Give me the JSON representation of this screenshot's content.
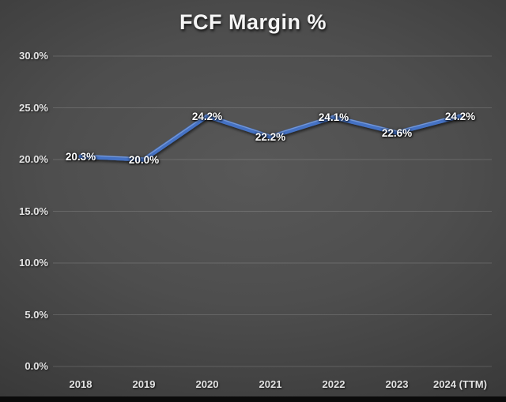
{
  "title": "FCF Margin %",
  "chart_data": {
    "type": "line",
    "title": "FCF Margin %",
    "categories": [
      "2018",
      "2019",
      "2020",
      "2021",
      "2022",
      "2023",
      "2024 (TTM)"
    ],
    "values": [
      20.3,
      20.0,
      24.2,
      22.2,
      24.1,
      22.6,
      24.2
    ],
    "point_labels": [
      "20.3%",
      "20.0%",
      "24.2%",
      "22.2%",
      "24.1%",
      "22.6%",
      "24.2%"
    ],
    "y_ticks": [
      {
        "value": 0,
        "label": "0.0%"
      },
      {
        "value": 5,
        "label": "5.0%"
      },
      {
        "value": 10,
        "label": "10.0%"
      },
      {
        "value": 15,
        "label": "15.0%"
      },
      {
        "value": 20,
        "label": "20.0%"
      },
      {
        "value": 25,
        "label": "25.0%"
      },
      {
        "value": 30,
        "label": "30.0%"
      }
    ],
    "ylim": [
      0,
      30
    ],
    "xlabel": "",
    "ylabel": "",
    "grid": true,
    "legend_position": "none",
    "series_name": "FCF Margin %"
  },
  "colors": {
    "line": "#4472C4",
    "line_highlight": "rgba(255,255,255,0.28)",
    "gridline": "rgba(255,255,255,0.15)",
    "point_label_text": "#ffffff",
    "axis_text": "#e3e3e3",
    "title_text": "#f5f5f5",
    "bottom_bar": "#0b0b0b"
  }
}
